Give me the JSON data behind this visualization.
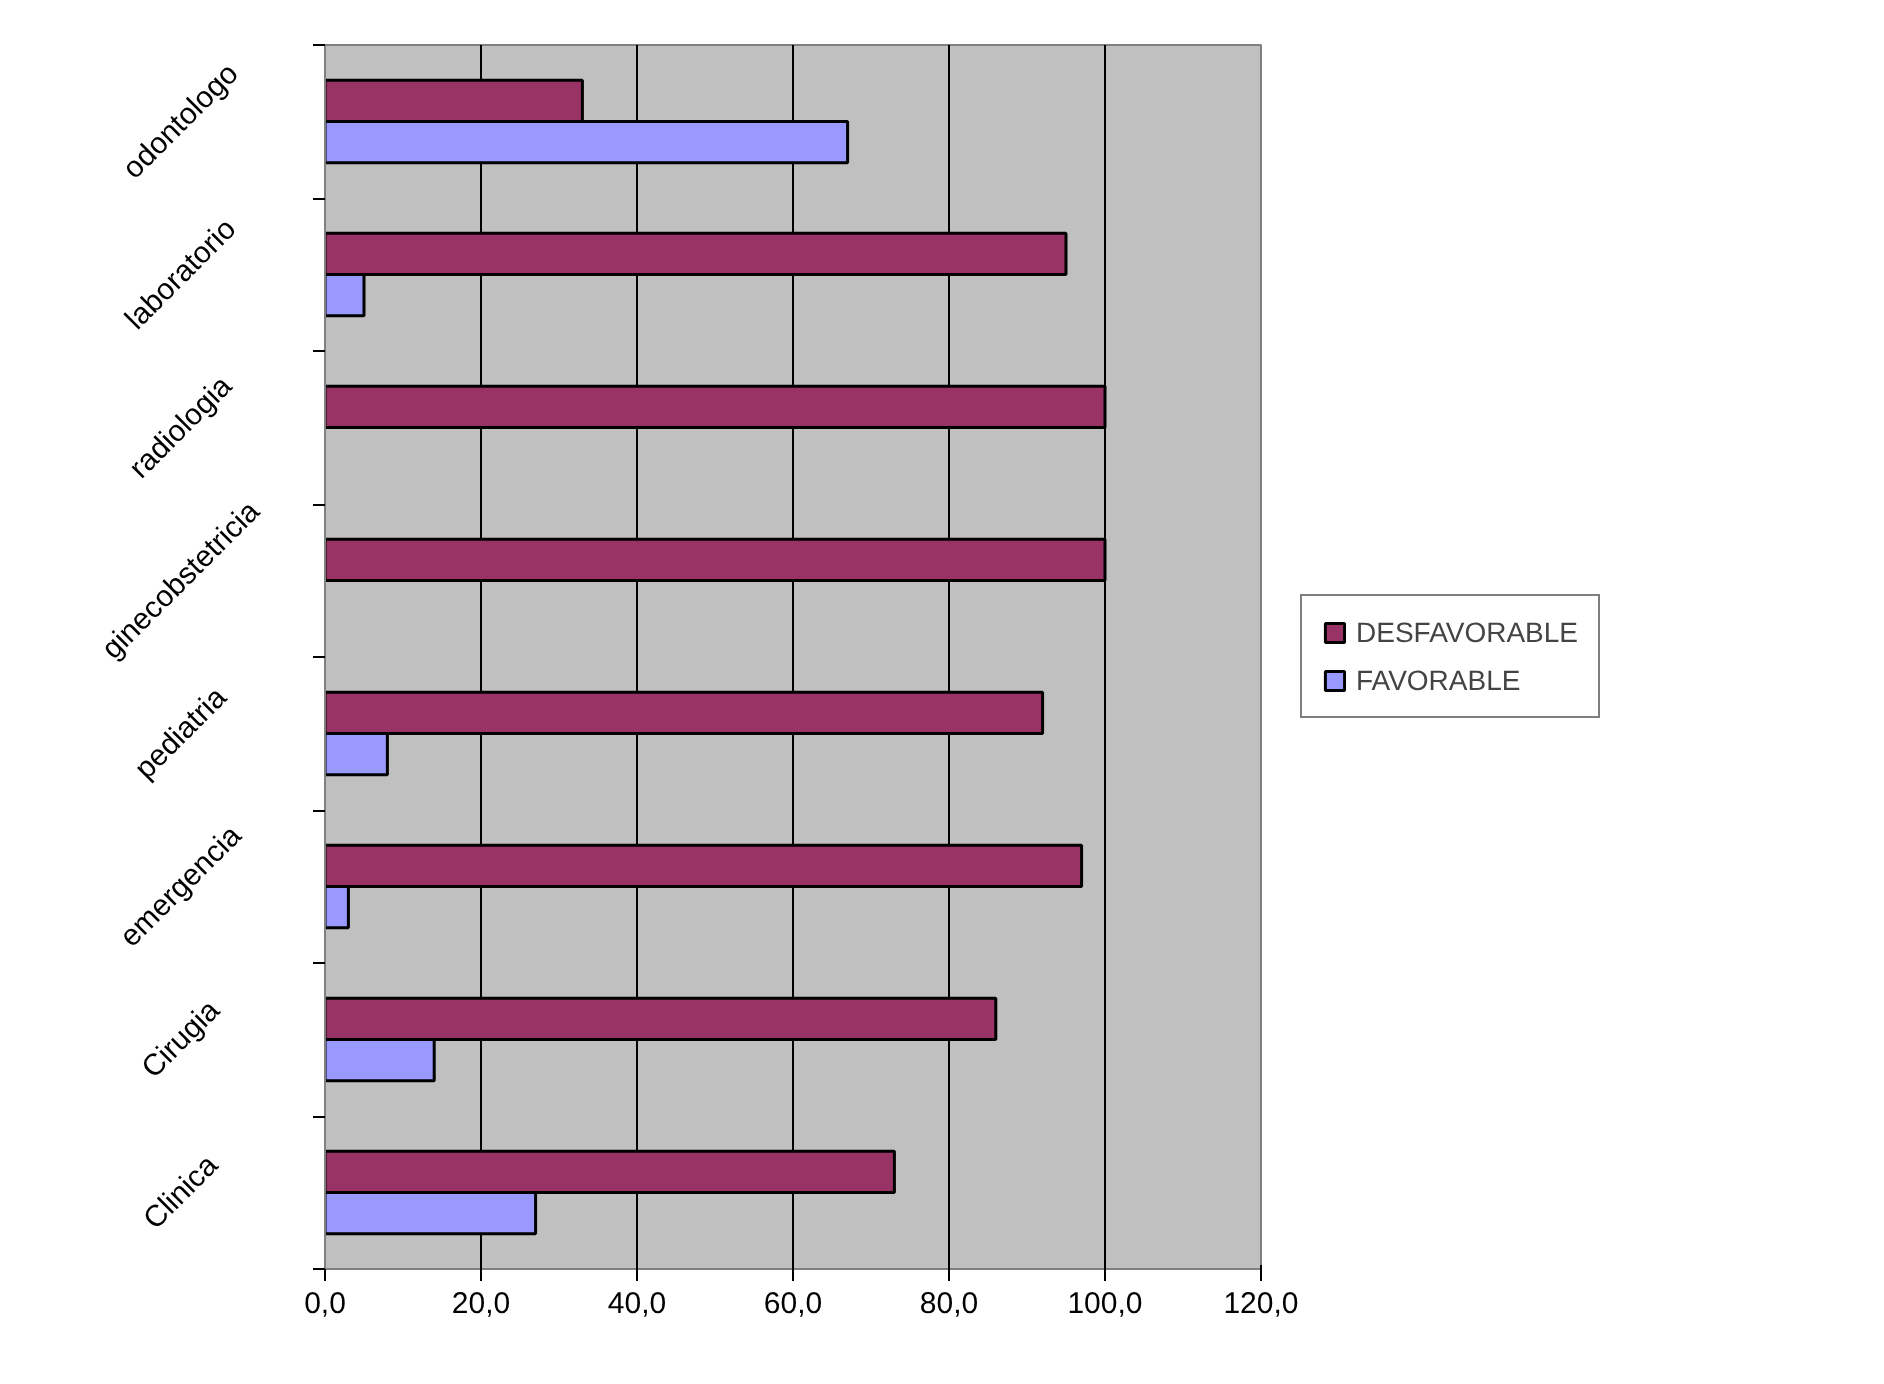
{
  "chart_data": {
    "type": "bar",
    "orientation": "horizontal",
    "categories": [
      "odontologo",
      "laboratorio",
      "radiologia",
      "ginecobstetricia",
      "pediatria",
      "emergencia",
      "Cirugia",
      "Clinica"
    ],
    "series": [
      {
        "name": "DESFAVORABLE",
        "color": "#993366",
        "values": [
          33,
          95,
          100,
          100,
          92,
          97,
          86,
          73
        ]
      },
      {
        "name": "FAVORABLE",
        "color": "#9999ff",
        "values": [
          67,
          5,
          0,
          0,
          8,
          3,
          14,
          27
        ]
      }
    ],
    "xlim": [
      0,
      120
    ],
    "xticks": [
      {
        "value": 0,
        "label": "0,0"
      },
      {
        "value": 20,
        "label": "20,0"
      },
      {
        "value": 40,
        "label": "40,0"
      },
      {
        "value": 60,
        "label": "60,0"
      },
      {
        "value": 80,
        "label": "80,0"
      },
      {
        "value": 100,
        "label": "100,0"
      },
      {
        "value": 120,
        "label": "120,0"
      }
    ],
    "grid": "x",
    "legend": "right"
  }
}
